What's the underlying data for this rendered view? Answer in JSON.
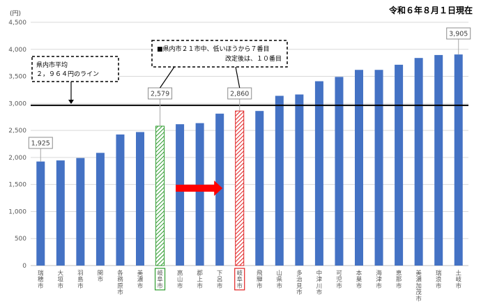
{
  "as_of": "令和６年８月１日現在",
  "unit": "(円)",
  "chart_data": {
    "type": "bar",
    "categories": [
      "瑞穂市",
      "大垣市",
      "羽島市",
      "関市",
      "各務原市",
      "美濃市",
      "岐阜市",
      "高山市",
      "郡上市",
      "下呂市",
      "岐阜市",
      "飛騨市",
      "山県市",
      "多治見市",
      "中津川市",
      "可児市",
      "本巣市",
      "海津市",
      "恵那市",
      "美濃加茂市",
      "瑞浪市",
      "土岐市"
    ],
    "values": [
      1925,
      1945,
      1990,
      2085,
      2425,
      2470,
      2579,
      2615,
      2635,
      2810,
      2860,
      2860,
      3140,
      3165,
      3410,
      3490,
      3620,
      3620,
      3715,
      3840,
      3895,
      3905
    ],
    "ylim": [
      0,
      4500
    ],
    "yticks": [
      "0",
      "500",
      "1,000",
      "1,500",
      "2,000",
      "2,500",
      "3,000",
      "3,500",
      "4,000",
      "4,500"
    ],
    "bar_color": "#4472C4",
    "highlights": [
      {
        "index": 6,
        "style": "green-hatch",
        "color": "#2E9B2E"
      },
      {
        "index": 10,
        "style": "red-hatch",
        "color": "#E02020"
      }
    ],
    "data_labels": [
      {
        "index": 0,
        "text": "1,925"
      },
      {
        "index": 6,
        "text": "2,579"
      },
      {
        "index": 10,
        "text": "2,860"
      },
      {
        "index": 21,
        "text": "3,905"
      }
    ],
    "average_line": {
      "value": 2964
    },
    "callouts": [
      {
        "lines": [
          "県内市平均",
          "２，９６４円のライン"
        ]
      },
      {
        "lines": [
          "■県内市２１市中、低いほうから７番目",
          "改定後は、１０番目"
        ]
      }
    ],
    "arrow": {
      "color": "#FF0000"
    },
    "grid": true
  }
}
